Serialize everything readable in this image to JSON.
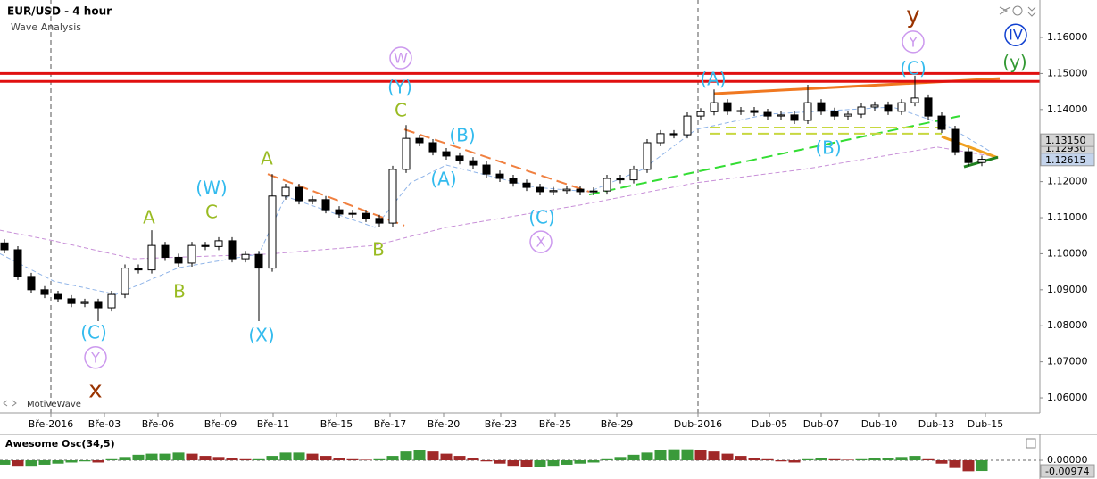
{
  "chart_data": [
    {
      "type": "candlestick",
      "title": "EUR/USD - 4 hour",
      "subtitle": "Wave Analysis",
      "watermark": "MotiveWave",
      "x": [
        1,
        4,
        7,
        10,
        13,
        16,
        19,
        22,
        25,
        28,
        31,
        34,
        37,
        40,
        43,
        46,
        49,
        52,
        55,
        58,
        61,
        64,
        67,
        70,
        73,
        76,
        79,
        82,
        85,
        88,
        91,
        94,
        97,
        100,
        103,
        106,
        109,
        112,
        115,
        118,
        121,
        124,
        127,
        130,
        133,
        136,
        139,
        142,
        145,
        148,
        151,
        154,
        157,
        160,
        163,
        166,
        169,
        172,
        175,
        178,
        181,
        184,
        187,
        190,
        193,
        196,
        199,
        202,
        205,
        208,
        211,
        214,
        217,
        220
      ],
      "open": [
        1.103,
        1.1011,
        1.0937,
        1.09,
        1.0887,
        1.0875,
        1.0862,
        1.0865,
        1.085,
        1.0887,
        1.096,
        1.0955,
        1.1023,
        1.099,
        1.0974,
        1.1023,
        1.102,
        1.1036,
        1.0986,
        1.0998,
        1.096,
        1.116,
        1.1184,
        1.1147,
        1.115,
        1.1122,
        1.111,
        1.1112,
        1.1098,
        1.1085,
        1.1234,
        1.132,
        1.1308,
        1.1283,
        1.1271,
        1.1258,
        1.1246,
        1.1221,
        1.1209,
        1.1196,
        1.1184,
        1.1172,
        1.1175,
        1.1179,
        1.1172,
        1.1174,
        1.1209,
        1.1205,
        1.1234,
        1.1308,
        1.1333,
        1.133,
        1.1382,
        1.1394,
        1.1419,
        1.1395,
        1.1397,
        1.1392,
        1.1382,
        1.1385,
        1.137,
        1.1419,
        1.1395,
        1.1382,
        1.1387,
        1.1407,
        1.1412,
        1.1395,
        1.1419,
        1.1432,
        1.1382,
        1.1345,
        1.1283,
        1.1253
      ],
      "high": [
        1.104,
        1.1021,
        1.0947,
        1.091,
        1.0897,
        1.0885,
        1.0875,
        1.0875,
        1.0897,
        1.097,
        1.097,
        1.1065,
        1.1033,
        1.1,
        1.1033,
        1.1033,
        1.1046,
        1.1046,
        1.1008,
        1.1008,
        1.1221,
        1.1194,
        1.1194,
        1.116,
        1.116,
        1.1132,
        1.1122,
        1.1122,
        1.1108,
        1.1244,
        1.1357,
        1.133,
        1.1318,
        1.1293,
        1.1281,
        1.1268,
        1.1256,
        1.1231,
        1.1219,
        1.1206,
        1.1194,
        1.1185,
        1.1189,
        1.1189,
        1.1184,
        1.1219,
        1.1219,
        1.1244,
        1.1318,
        1.1343,
        1.1343,
        1.1392,
        1.1404,
        1.1456,
        1.1429,
        1.1407,
        1.1407,
        1.1402,
        1.1395,
        1.1395,
        1.1469,
        1.1429,
        1.1405,
        1.1397,
        1.1417,
        1.1422,
        1.1422,
        1.1429,
        1.1494,
        1.1442,
        1.1392,
        1.1355,
        1.1293,
        1.1272
      ],
      "low": [
        1.1001,
        1.0927,
        1.089,
        1.0877,
        1.0865,
        1.0852,
        1.0852,
        1.0813,
        1.084,
        1.0877,
        1.0945,
        1.0945,
        1.098,
        1.0964,
        1.0964,
        1.101,
        1.101,
        1.0976,
        1.0976,
        1.0813,
        1.095,
        1.115,
        1.1137,
        1.1137,
        1.1112,
        1.11,
        1.11,
        1.1088,
        1.1075,
        1.1075,
        1.1224,
        1.1298,
        1.1273,
        1.1261,
        1.1248,
        1.1236,
        1.1211,
        1.1199,
        1.1186,
        1.1174,
        1.1162,
        1.1162,
        1.1165,
        1.1162,
        1.1162,
        1.1164,
        1.1195,
        1.1195,
        1.1224,
        1.1298,
        1.132,
        1.132,
        1.1372,
        1.1384,
        1.1385,
        1.1385,
        1.1382,
        1.1372,
        1.1372,
        1.136,
        1.136,
        1.1385,
        1.1372,
        1.1372,
        1.1377,
        1.1397,
        1.1385,
        1.1385,
        1.1409,
        1.1372,
        1.1335,
        1.1273,
        1.1243,
        1.1243
      ],
      "close": [
        1.1011,
        1.0937,
        1.09,
        1.0887,
        1.0875,
        1.0862,
        1.0865,
        1.085,
        1.0887,
        1.096,
        1.0955,
        1.1023,
        1.099,
        1.0974,
        1.1023,
        1.102,
        1.1036,
        1.0986,
        1.0998,
        1.096,
        1.116,
        1.1184,
        1.1147,
        1.115,
        1.1122,
        1.111,
        1.1112,
        1.1098,
        1.1085,
        1.1234,
        1.132,
        1.1308,
        1.1283,
        1.1271,
        1.1258,
        1.1246,
        1.1221,
        1.1209,
        1.1196,
        1.1184,
        1.1172,
        1.1175,
        1.1179,
        1.1172,
        1.1174,
        1.1209,
        1.1205,
        1.1234,
        1.1308,
        1.1333,
        1.133,
        1.1382,
        1.1394,
        1.1419,
        1.1395,
        1.1397,
        1.1392,
        1.1382,
        1.1385,
        1.137,
        1.1419,
        1.1395,
        1.1382,
        1.1387,
        1.1407,
        1.1412,
        1.1395,
        1.1419,
        1.1432,
        1.1382,
        1.1345,
        1.1283,
        1.1253,
        1.1262
      ],
      "xlim": [
        0,
        233
      ],
      "ylim": [
        1.0558,
        1.1704
      ],
      "xticks": [
        {
          "value": 11.4,
          "label": "Bře-2016"
        },
        {
          "value": 23.4,
          "label": "Bře-03"
        },
        {
          "value": 35.4,
          "label": "Bře-06"
        },
        {
          "value": 49.4,
          "label": "Bře-09"
        },
        {
          "value": 61.2,
          "label": "Bře-11"
        },
        {
          "value": 75.4,
          "label": "Bře-15"
        },
        {
          "value": 87.4,
          "label": "Bře-17"
        },
        {
          "value": 99.4,
          "label": "Bře-20"
        },
        {
          "value": 112.2,
          "label": "Bře-23"
        },
        {
          "value": 124.4,
          "label": "Bře-25"
        },
        {
          "value": 138.2,
          "label": "Bře-29"
        },
        {
          "value": 156.4,
          "label": "Dub-2016"
        },
        {
          "value": 172.4,
          "label": "Dub-05"
        },
        {
          "value": 184,
          "label": "Dub-07"
        },
        {
          "value": 197,
          "label": "Dub-10"
        },
        {
          "value": 209.8,
          "label": "Dub-13"
        },
        {
          "value": 220.8,
          "label": "Dub-15"
        }
      ],
      "yticks": [
        {
          "value": 1.16,
          "label": "1.16000"
        },
        {
          "value": 1.15,
          "label": "1.15000"
        },
        {
          "value": 1.14,
          "label": "1.14000"
        },
        {
          "value": 1.13,
          "label": "1.13000"
        },
        {
          "value": 1.12,
          "label": "1.12000"
        },
        {
          "value": 1.11,
          "label": "1.11000"
        },
        {
          "value": 1.1,
          "label": "1.10000"
        },
        {
          "value": 1.09,
          "label": "1.09000"
        },
        {
          "value": 1.08,
          "label": "1.08000"
        },
        {
          "value": 1.07,
          "label": "1.07000"
        },
        {
          "value": 1.06,
          "label": "1.06000"
        }
      ],
      "price_tags": [
        {
          "value": 1.1293,
          "label": "1.12930",
          "color": "#d4d4d4"
        },
        {
          "value": 1.1315,
          "label": "1.13150",
          "color": "#d4d4d4"
        },
        {
          "value": 1.12615,
          "label": "1.12615",
          "color": "#c4d4ec"
        }
      ],
      "separators": [
        11.4,
        156.4
      ],
      "levels": [
        {
          "value": 1.15,
          "color": "#e01010"
        },
        {
          "value": 1.1478,
          "color": "#e01010"
        }
      ],
      "overlays": [
        {
          "color": "#8fb4e8",
          "dash": true,
          "x": [
            0,
            12,
            26,
            40,
            58,
            64,
            84,
            92,
            100,
            120,
            132,
            144,
            156,
            172,
            200,
            212,
            222
          ],
          "y": [
            1.1,
            1.0924,
            1.0887,
            1.0961,
            1.0999,
            1.1159,
            1.1073,
            1.1197,
            1.1246,
            1.1184,
            1.1172,
            1.1234,
            1.1345,
            1.1387,
            1.1407,
            1.1357,
            1.1283
          ]
        },
        {
          "color": "#c890d8",
          "dash": true,
          "x": [
            0,
            12,
            30,
            60,
            84,
            100,
            130,
            156,
            180,
            210,
            222
          ],
          "y": [
            1.1065,
            1.1036,
            1.0986,
            1.0999,
            1.1023,
            1.1073,
            1.1135,
            1.1197,
            1.1234,
            1.1296,
            1.1271
          ]
        },
        {
          "color": "#f08040",
          "dash": true,
          "x": [
            60,
            90.6
          ],
          "y": [
            1.1221,
            1.1078
          ]
        },
        {
          "color": "#f08040",
          "dash": true,
          "x": [
            90.6,
            132
          ],
          "y": [
            1.1345,
            1.1172
          ]
        },
        {
          "color": "#33dd33",
          "dash": true,
          "x": [
            132,
            215
          ],
          "y": [
            1.1164,
            1.1382
          ]
        },
        {
          "color": "#c8d840",
          "dash": true,
          "x": [
            159,
            211
          ],
          "y": [
            1.135,
            1.135
          ]
        },
        {
          "color": "#c8d840",
          "dash": true,
          "x": [
            159,
            211
          ],
          "y": [
            1.1333,
            1.1333
          ]
        },
        {
          "color": "#f07820",
          "dash": false,
          "x": [
            160,
            224
          ],
          "y": [
            1.1444,
            1.1486
          ]
        },
        {
          "color": "#f0a020",
          "dash": false,
          "x": [
            211,
            223.6
          ],
          "y": [
            1.1325,
            1.1266
          ]
        },
        {
          "color": "#208020",
          "dash": false,
          "x": [
            216,
            223.6
          ],
          "y": [
            1.1241,
            1.1268
          ]
        }
      ],
      "annotations": [
        {
          "text": "(C)",
          "x": 21,
          "y": 1.0781,
          "color": "#33bbee"
        },
        {
          "text": "Y",
          "x": 21.4,
          "y": 1.0712,
          "color": "#cc99ee",
          "circle": true
        },
        {
          "text": "x",
          "x": 21.4,
          "y": 1.0622,
          "color": "#993300"
        },
        {
          "text": "A",
          "x": 33.4,
          "y": 1.11,
          "color": "#99bb22"
        },
        {
          "text": "B",
          "x": 40.2,
          "y": 1.0895,
          "color": "#99bb22"
        },
        {
          "text": "(W)",
          "x": 47.4,
          "y": 1.1182,
          "color": "#33bbee"
        },
        {
          "text": "C",
          "x": 47.4,
          "y": 1.1115,
          "color": "#99bb22"
        },
        {
          "text": "A",
          "x": 59.8,
          "y": 1.1263,
          "color": "#99bb22"
        },
        {
          "text": "(X)",
          "x": 58.6,
          "y": 1.0773,
          "color": "#33bbee"
        },
        {
          "text": "B",
          "x": 84.8,
          "y": 1.1011,
          "color": "#99bb22"
        },
        {
          "text": "W",
          "x": 89.8,
          "y": 1.1543,
          "color": "#cc99ee",
          "circle": true
        },
        {
          "text": "(Y)",
          "x": 89.6,
          "y": 1.1461,
          "color": "#33bbee"
        },
        {
          "text": "C",
          "x": 89.8,
          "y": 1.1397,
          "color": "#99bb22"
        },
        {
          "text": "(B)",
          "x": 103.6,
          "y": 1.1328,
          "color": "#33bbee"
        },
        {
          "text": "(A)",
          "x": 99.4,
          "y": 1.1206,
          "color": "#33bbee"
        },
        {
          "text": "(C)",
          "x": 121.4,
          "y": 1.11,
          "color": "#33bbee"
        },
        {
          "text": "X",
          "x": 121.2,
          "y": 1.1033,
          "color": "#cc99ee",
          "circle": true
        },
        {
          "text": "(A)",
          "x": 159.8,
          "y": 1.1484,
          "color": "#33bbee"
        },
        {
          "text": "(B)",
          "x": 185.6,
          "y": 1.1293,
          "color": "#33bbee"
        },
        {
          "text": "(C)",
          "x": 204.6,
          "y": 1.1513,
          "color": "#33bbee"
        },
        {
          "text": "Y",
          "x": 204.6,
          "y": 1.1588,
          "color": "#cc99ee",
          "circle": true
        },
        {
          "text": "y",
          "x": 204.6,
          "y": 1.1662,
          "color": "#993300"
        },
        {
          "text": "IV",
          "x": 227.6,
          "y": 1.1607,
          "color": "#1040d0",
          "circle": true
        },
        {
          "text": "(y)",
          "x": 227.4,
          "y": 1.1531,
          "color": "#339933"
        }
      ],
      "up_color": "#ffffff",
      "down_color": "#000000"
    },
    {
      "type": "bar",
      "title": "Awesome Osc(34,5)",
      "x": [
        1,
        4,
        7,
        10,
        13,
        16,
        19,
        22,
        25,
        28,
        31,
        34,
        37,
        40,
        43,
        46,
        49,
        52,
        55,
        58,
        61,
        64,
        67,
        70,
        73,
        76,
        79,
        82,
        85,
        88,
        91,
        94,
        97,
        100,
        103,
        106,
        109,
        112,
        115,
        118,
        121,
        124,
        127,
        130,
        133,
        136,
        139,
        142,
        145,
        148,
        151,
        154,
        157,
        160,
        163,
        166,
        169,
        172,
        175,
        178,
        181,
        184,
        187,
        190,
        193,
        196,
        199,
        202,
        205,
        208,
        211,
        214,
        217,
        220
      ],
      "values": [
        -0.004,
        -0.005,
        -0.005,
        -0.004,
        -0.003,
        -0.002,
        -0.001,
        -0.002,
        0.001,
        0.003,
        0.005,
        0.006,
        0.006,
        0.007,
        0.006,
        0.004,
        0.003,
        0.002,
        0.001,
        0.001,
        0.004,
        0.007,
        0.007,
        0.006,
        0.004,
        0.002,
        0.001,
        0.0005,
        0.001,
        0.004,
        0.008,
        0.009,
        0.008,
        0.006,
        0.004,
        0.002,
        -0.001,
        -0.003,
        -0.005,
        -0.006,
        -0.006,
        -0.005,
        -0.004,
        -0.003,
        -0.002,
        0.001,
        0.003,
        0.005,
        0.007,
        0.009,
        0.01,
        0.01,
        0.009,
        0.008,
        0.006,
        0.004,
        0.002,
        0.001,
        -0.001,
        -0.002,
        0.001,
        0.002,
        0.001,
        0.0005,
        0.001,
        0.002,
        0.002,
        0.003,
        0.004,
        0.001,
        -0.003,
        -0.007,
        -0.01,
        -0.00974
      ],
      "xlim": [
        0,
        233
      ],
      "ylim": [
        -0.017,
        0.0227
      ],
      "yticks": [
        {
          "value": 0,
          "label": "0.00000"
        }
      ],
      "price_tags": [
        {
          "value": -0.00974,
          "label": "-0.00974",
          "color": "#d4d4d4"
        }
      ],
      "up_color": "#3a9a3a",
      "down_color": "#a02828"
    }
  ]
}
